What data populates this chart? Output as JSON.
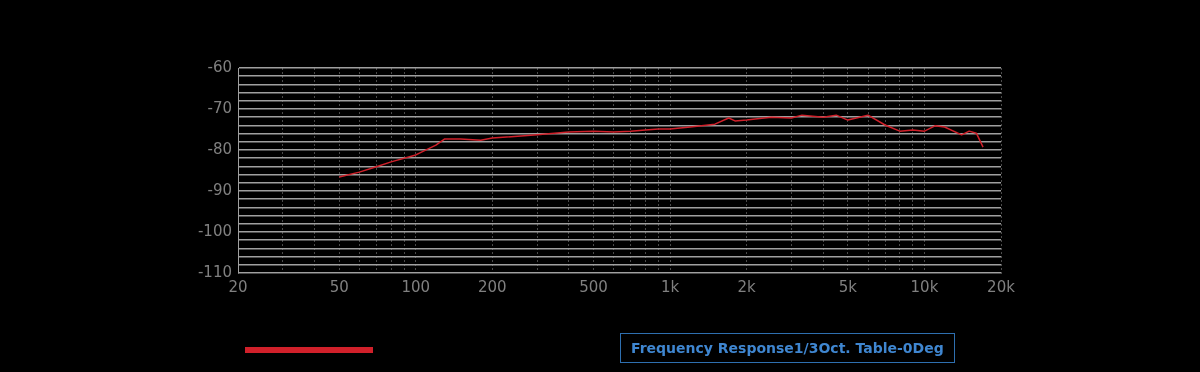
{
  "chart_data": {
    "type": "line",
    "log": "x",
    "grid": true,
    "legend": false,
    "marker": "none",
    "line_style": "solid",
    "annotations": [
      "Frequency Response1/3Oct. Table-0Deg"
    ],
    "xlim": [
      20,
      20000
    ],
    "xticks": [
      20,
      {
        "value": 30,
        "label": null
      },
      {
        "value": 40,
        "label": null
      },
      50,
      {
        "value": 60,
        "label": null
      },
      {
        "value": 70,
        "label": null
      },
      {
        "value": 80,
        "label": null
      },
      {
        "value": 90,
        "label": null
      },
      100,
      200,
      {
        "value": 300,
        "label": null
      },
      {
        "value": 400,
        "label": null
      },
      500,
      {
        "value": 600,
        "label": null
      },
      {
        "value": 700,
        "label": null
      },
      {
        "value": 800,
        "label": null
      },
      {
        "value": 900,
        "label": null
      },
      {
        "value": 1000,
        "label": "1k"
      },
      {
        "value": 2000,
        "label": "2k"
      },
      {
        "value": 3000,
        "label": null
      },
      {
        "value": 4000,
        "label": null
      },
      {
        "value": 5000,
        "label": "5k"
      },
      {
        "value": 6000,
        "label": null
      },
      {
        "value": 7000,
        "label": null
      },
      {
        "value": 8000,
        "label": null
      },
      {
        "value": 9000,
        "label": null
      },
      {
        "value": 10000,
        "label": "10k"
      },
      {
        "value": 20000,
        "label": "20k"
      }
    ],
    "ylim": [
      -110,
      -60
    ],
    "yticks": [
      -110,
      {
        "value": -108,
        "label": null
      },
      {
        "value": -106,
        "label": null
      },
      {
        "value": -104,
        "label": null
      },
      {
        "value": -102,
        "label": null
      },
      -100,
      {
        "value": -98,
        "label": null
      },
      {
        "value": -96,
        "label": null
      },
      {
        "value": -94,
        "label": null
      },
      {
        "value": -92,
        "label": null
      },
      -90,
      {
        "value": -88,
        "label": null
      },
      {
        "value": -86,
        "label": null
      },
      {
        "value": -84,
        "label": null
      },
      {
        "value": -82,
        "label": null
      },
      -80,
      {
        "value": -78,
        "label": null
      },
      {
        "value": -76,
        "label": null
      },
      {
        "value": -74,
        "label": null
      },
      {
        "value": -72,
        "label": null
      },
      -70,
      {
        "value": -68,
        "label": null
      },
      {
        "value": -66,
        "label": null
      },
      {
        "value": -64,
        "label": null
      },
      {
        "value": -62,
        "label": null
      },
      -60
    ],
    "x": [
      50,
      60,
      70,
      80,
      100,
      120,
      130,
      150,
      180,
      200,
      300,
      400,
      500,
      600,
      700,
      800,
      900,
      1000,
      1200,
      1500,
      1700,
      1800,
      2000,
      2500,
      3000,
      3300,
      4000,
      4500,
      5000,
      6000,
      7000,
      8000,
      9000,
      10000,
      11000,
      12000,
      14000,
      15000,
      16000,
      17000
    ],
    "series": [
      {
        "color": "#d0202a",
        "values": [
          -86.6,
          -85.4,
          -84.1,
          -82.9,
          -81.2,
          -78.8,
          -77.3,
          -77.3,
          -77.6,
          -77.1,
          -76.3,
          -75.6,
          -75.4,
          -75.6,
          -75.4,
          -75.1,
          -74.9,
          -74.9,
          -74.4,
          -73.7,
          -72.2,
          -72.9,
          -72.7,
          -72,
          -72.2,
          -71.5,
          -72,
          -71.5,
          -72.7,
          -71.5,
          -73.9,
          -75.4,
          -75.1,
          -75.4,
          -74.1,
          -74.4,
          -76.3,
          -75.4,
          -75.9,
          -79.3
        ]
      }
    ]
  }
}
